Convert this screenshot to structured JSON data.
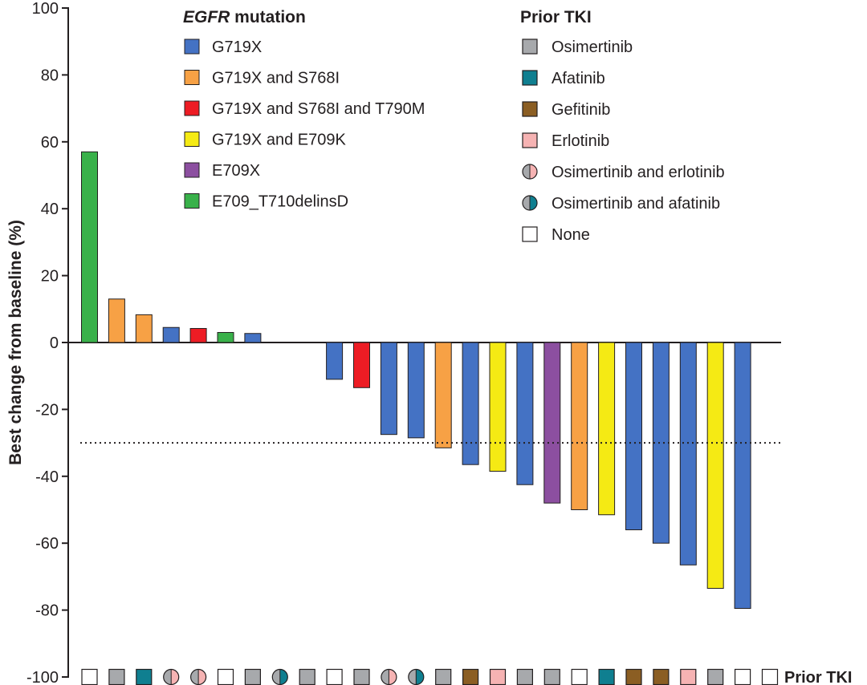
{
  "chart_data": {
    "type": "bar",
    "title": "",
    "xlabel": "",
    "ylabel": "Best change from baseline (%)",
    "ylim": [
      -100,
      100
    ],
    "yticks": [
      100,
      80,
      60,
      40,
      20,
      0,
      -20,
      -40,
      -60,
      -80,
      -100
    ],
    "ytick_labels": [
      "100",
      "80",
      "60",
      "40",
      "20",
      "0",
      "-20",
      "-40",
      "-60",
      "-80",
      "-100"
    ],
    "threshold": -30,
    "threshold_style": "dotted",
    "bars": [
      {
        "value": 57,
        "mutation": "E709_T710delinsD",
        "prior_tki": "None"
      },
      {
        "value": 13,
        "mutation": "G719X and S768I",
        "prior_tki": "Osimertinib"
      },
      {
        "value": 8.3,
        "mutation": "G719X and S768I",
        "prior_tki": "Afatinib"
      },
      {
        "value": 4.5,
        "mutation": "G719X",
        "prior_tki": "Osimertinib and erlotinib"
      },
      {
        "value": 4.2,
        "mutation": "G719X and S768I and T790M",
        "prior_tki": "Osimertinib and erlotinib"
      },
      {
        "value": 3,
        "mutation": "E709_T710delinsD",
        "prior_tki": "None"
      },
      {
        "value": 2.7,
        "mutation": "G719X",
        "prior_tki": "Osimertinib"
      },
      {
        "value": null,
        "mutation": "",
        "prior_tki": "Osimertinib and afatinib"
      },
      {
        "value": null,
        "mutation": "",
        "prior_tki": "Osimertinib"
      },
      {
        "value": -11,
        "mutation": "G719X",
        "prior_tki": "None"
      },
      {
        "value": -13.5,
        "mutation": "G719X and S768I and T790M",
        "prior_tki": "Osimertinib"
      },
      {
        "value": -27.5,
        "mutation": "G719X",
        "prior_tki": "Osimertinib and erlotinib"
      },
      {
        "value": -28.5,
        "mutation": "G719X",
        "prior_tki": "Osimertinib and afatinib"
      },
      {
        "value": -31.5,
        "mutation": "G719X and S768I",
        "prior_tki": "Osimertinib"
      },
      {
        "value": -36.5,
        "mutation": "G719X",
        "prior_tki": "Gefitinib"
      },
      {
        "value": -38.5,
        "mutation": "G719X and E709K",
        "prior_tki": "Erlotinib"
      },
      {
        "value": -42.5,
        "mutation": "G719X",
        "prior_tki": "Osimertinib"
      },
      {
        "value": -48,
        "mutation": "E709X",
        "prior_tki": "Osimertinib"
      },
      {
        "value": -50,
        "mutation": "G719X and S768I",
        "prior_tki": "None"
      },
      {
        "value": -51.5,
        "mutation": "G719X and E709K",
        "prior_tki": "Afatinib"
      },
      {
        "value": -56,
        "mutation": "G719X",
        "prior_tki": "Gefitinib"
      },
      {
        "value": -60,
        "mutation": "G719X",
        "prior_tki": "Gefitinib"
      },
      {
        "value": -66.5,
        "mutation": "G719X",
        "prior_tki": "Erlotinib"
      },
      {
        "value": -73.5,
        "mutation": "G719X and E709K",
        "prior_tki": "Osimertinib"
      },
      {
        "value": -79.5,
        "mutation": "G719X",
        "prior_tki": "None"
      },
      {
        "value": null,
        "mutation": "",
        "prior_tki": "None"
      }
    ],
    "legend_mutation": {
      "title_italic": "EGFR",
      "title_rest": " mutation",
      "position": "top-left",
      "items": [
        {
          "label": "G719X",
          "color": "#4472c4"
        },
        {
          "label": "G719X and S768I",
          "color": "#f7a145"
        },
        {
          "label": "G719X and S768I and T790M",
          "color": "#ed1c24"
        },
        {
          "label": "G719X and E709K",
          "color": "#f5ea14"
        },
        {
          "label": "E709X",
          "color": "#8c4fa0"
        },
        {
          "label": "E709_T710delinsD",
          "color": "#39b14a"
        }
      ]
    },
    "legend_tki": {
      "title": "Prior TKI",
      "position": "top-right",
      "items": [
        {
          "label": "Osimertinib",
          "kind": "square",
          "color": "#a7a9ac"
        },
        {
          "label": "Afatinib",
          "kind": "square",
          "color": "#0f7f90"
        },
        {
          "label": "Gefitinib",
          "kind": "square",
          "color": "#8b5e23"
        },
        {
          "label": "Erlotinib",
          "kind": "square",
          "color": "#f6b3b3"
        },
        {
          "label": "Osimertinib and erlotinib",
          "kind": "half-circle",
          "color": "#a7a9ac",
          "color2": "#f6b3b3"
        },
        {
          "label": "Osimertinib and afatinib",
          "kind": "half-circle",
          "color": "#a7a9ac",
          "color2": "#0f7f90"
        },
        {
          "label": "None",
          "kind": "square",
          "color": "#ffffff"
        }
      ]
    },
    "prior_tki_row_label": "Prior TKI"
  }
}
